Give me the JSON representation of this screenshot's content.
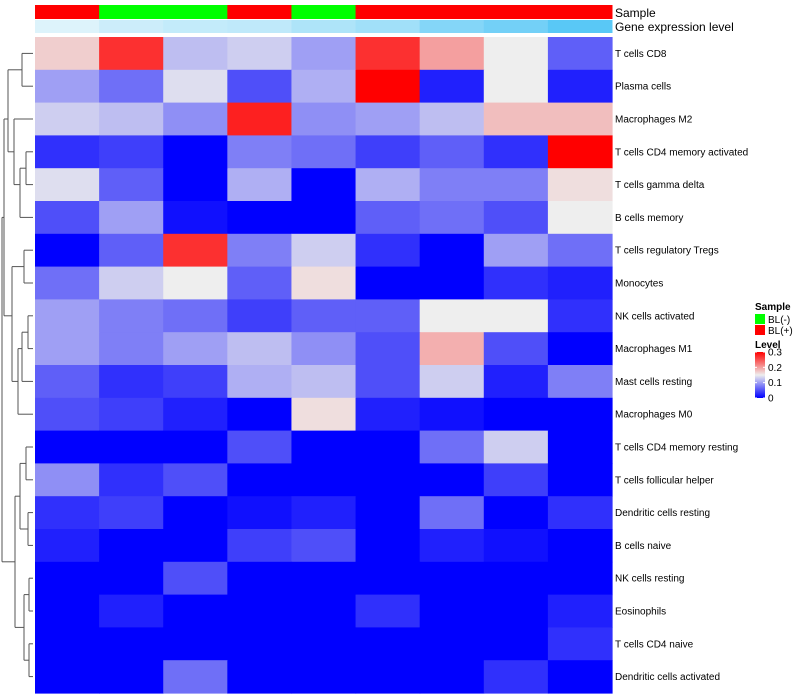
{
  "chart_data": {
    "type": "heatmap",
    "title": "",
    "annotation_labels": {
      "sample": "Sample",
      "gene": "Gene expression level"
    },
    "columns": [
      {
        "sample": "BL(+)",
        "gene": 0.41
      },
      {
        "sample": "BL(-)",
        "gene": 0.45
      },
      {
        "sample": "BL(-)",
        "gene": 0.47
      },
      {
        "sample": "BL(+)",
        "gene": 0.48
      },
      {
        "sample": "BL(-)",
        "gene": 0.52
      },
      {
        "sample": "BL(+)",
        "gene": 0.55
      },
      {
        "sample": "BL(+)",
        "gene": 0.62
      },
      {
        "sample": "BL(+)",
        "gene": 0.66
      },
      {
        "sample": "BL(+)",
        "gene": 0.72
      }
    ],
    "rows": [
      "T cells CD8",
      "Plasma cells",
      "Macrophages M2",
      "T cells CD4 memory activated",
      "T cells gamma delta",
      "B cells memory",
      "T cells regulatory  Tregs",
      "Monocytes",
      "NK cells activated",
      "Macrophages M1",
      "Mast cells resting",
      "Macrophages M0",
      "T cells CD4 memory resting",
      "T cells follicular helper",
      "Dendritic cells resting",
      "B cells naive",
      "NK cells resting",
      "Eosinophils",
      "T cells CD4 naive",
      "Dendritic cells activated"
    ],
    "values": [
      [
        0.17,
        0.27,
        0.12,
        0.13,
        0.1,
        0.27,
        0.2,
        0.15,
        0.06
      ],
      [
        0.1,
        0.07,
        0.14,
        0.05,
        0.11,
        0.3,
        0.02,
        0.15,
        0.02
      ],
      [
        0.13,
        0.12,
        0.09,
        0.28,
        0.09,
        0.1,
        0.12,
        0.18,
        0.18
      ],
      [
        0.03,
        0.04,
        0.0,
        0.08,
        0.07,
        0.04,
        0.06,
        0.03,
        0.3
      ],
      [
        0.14,
        0.06,
        0.0,
        0.11,
        0.0,
        0.11,
        0.08,
        0.08,
        0.16
      ],
      [
        0.05,
        0.1,
        0.01,
        0.0,
        0.0,
        0.06,
        0.07,
        0.05,
        0.15
      ],
      [
        0.0,
        0.06,
        0.27,
        0.08,
        0.13,
        0.03,
        0.0,
        0.1,
        0.07
      ],
      [
        0.07,
        0.13,
        0.15,
        0.06,
        0.16,
        0.0,
        0.0,
        0.03,
        0.02
      ],
      [
        0.1,
        0.08,
        0.07,
        0.04,
        0.06,
        0.06,
        0.15,
        0.15,
        0.03
      ],
      [
        0.1,
        0.08,
        0.1,
        0.12,
        0.09,
        0.05,
        0.19,
        0.05,
        0.0
      ],
      [
        0.06,
        0.03,
        0.04,
        0.11,
        0.12,
        0.05,
        0.13,
        0.02,
        0.08
      ],
      [
        0.05,
        0.04,
        0.02,
        0.0,
        0.16,
        0.02,
        0.01,
        0.0,
        0.0
      ],
      [
        0.0,
        0.0,
        0.0,
        0.05,
        0.0,
        0.0,
        0.07,
        0.13,
        0.0
      ],
      [
        0.09,
        0.03,
        0.05,
        0.0,
        0.0,
        0.0,
        0.0,
        0.04,
        0.0
      ],
      [
        0.03,
        0.04,
        0.0,
        0.01,
        0.02,
        0.0,
        0.07,
        0.0,
        0.03
      ],
      [
        0.02,
        0.0,
        0.0,
        0.04,
        0.05,
        0.0,
        0.02,
        0.01,
        0.0
      ],
      [
        0.0,
        0.0,
        0.05,
        0.0,
        0.0,
        0.0,
        0.0,
        0.0,
        0.0
      ],
      [
        0.0,
        0.02,
        0.0,
        0.0,
        0.0,
        0.03,
        0.0,
        0.0,
        0.02
      ],
      [
        0.0,
        0.0,
        0.0,
        0.0,
        0.0,
        0.0,
        0.0,
        0.0,
        0.03
      ],
      [
        0.0,
        0.0,
        0.07,
        0.0,
        0.0,
        0.0,
        0.0,
        0.03,
        0.0
      ]
    ],
    "color_scale": {
      "stops": [
        {
          "value": 0,
          "color": "#0000ff"
        },
        {
          "value": 0.15,
          "color": "#eeeeee"
        },
        {
          "value": 0.3,
          "color": "#ff0000"
        }
      ]
    },
    "sample_colors": {
      "BL(-)": "#00ff00",
      "BL(+)": "#ff0000"
    },
    "gene_color_range": {
      "low": "#ddf3fb",
      "high": "#59c8f6"
    },
    "legend": {
      "sample_title": "Sample",
      "sample_entries": [
        "BL(-)",
        "BL(+)"
      ],
      "level_title": "Level",
      "level_ticks": [
        {
          "value": 0.3,
          "label": "0.3"
        },
        {
          "value": 0.2,
          "label": "0.2"
        },
        {
          "value": 0.1,
          "label": "0.1"
        },
        {
          "value": 0,
          "label": "0"
        }
      ],
      "placement": "right"
    },
    "row_dendrogram": true,
    "column_clustering": false
  }
}
